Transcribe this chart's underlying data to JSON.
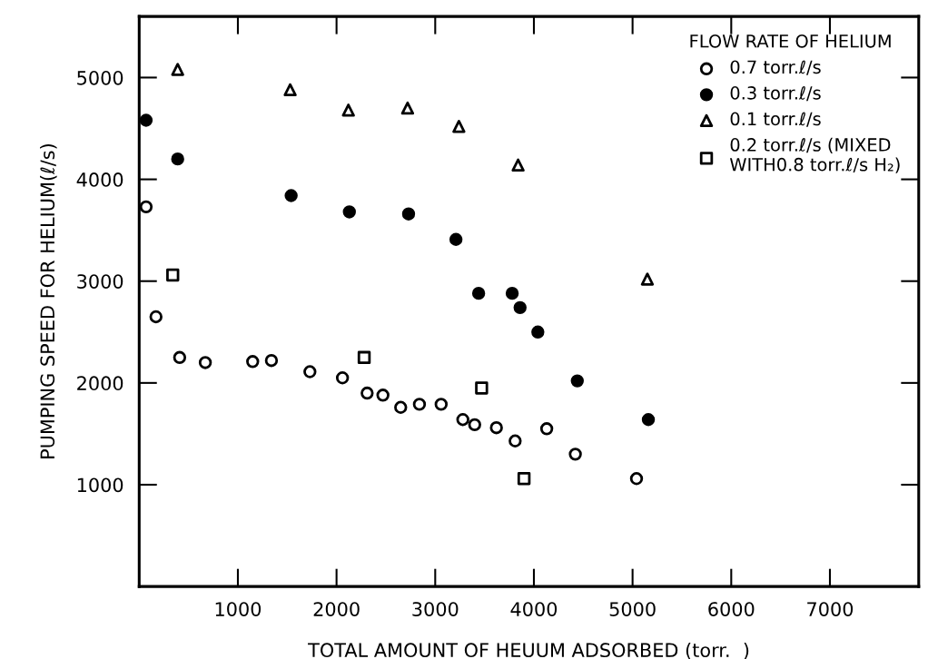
{
  "chart_data": {
    "type": "scatter",
    "xlabel": "TOTAL AMOUNT OF HEUUM ADSORBED (torr.  )",
    "ylabel": "PUMPING SPEED FOR HELIUM(ℓ/s)",
    "legend_title": "FLOW RATE OF HELIUM",
    "legend": "top right",
    "grid": false,
    "xlim": [
      0,
      7900
    ],
    "xticks": [
      1000,
      2000,
      3000,
      4000,
      5000,
      6000,
      7000
    ],
    "ylim": [
      0,
      5600
    ],
    "yticks": [
      1000,
      2000,
      3000,
      4000,
      5000
    ],
    "series": [
      {
        "name": "0.7 torr.ℓ/s",
        "color": "#000000",
        "marker": "circle",
        "x": [
          70,
          170,
          410,
          670,
          1150,
          1340,
          1730,
          2060,
          2310,
          2470,
          2650,
          2840,
          3060,
          3280,
          3400,
          3620,
          3810,
          4130,
          4420,
          5040
        ],
        "values": [
          3730,
          2650,
          2250,
          2200,
          2210,
          2220,
          2110,
          2050,
          1900,
          1880,
          1760,
          1790,
          1790,
          1640,
          1590,
          1560,
          1430,
          1550,
          1300,
          1060
        ]
      },
      {
        "name": "0.3 torr.ℓ/s",
        "color": "#000000",
        "marker": "circle",
        "x": [
          70,
          390,
          1540,
          2130,
          2730,
          3210,
          3440,
          3780,
          3860,
          4040,
          4440,
          5160
        ],
        "values": [
          4580,
          4200,
          3840,
          3680,
          3660,
          3410,
          2880,
          2880,
          2740,
          2500,
          2020,
          1640
        ]
      },
      {
        "name": "0.1 torr.ℓ/s",
        "color": "#000000",
        "marker": "triangle",
        "x": [
          390,
          1530,
          2120,
          2720,
          3240,
          3840,
          5150
        ],
        "values": [
          5080,
          4880,
          4680,
          4700,
          4520,
          4140,
          3020
        ]
      },
      {
        "name": "0.2 torr.ℓ/s (MIXED\nWITH0.8 torr.ℓ/s H₂)",
        "color": "#000000",
        "marker": "square",
        "x": [
          340,
          2280,
          3470,
          3900
        ],
        "values": [
          3060,
          2250,
          1950,
          1060
        ]
      }
    ]
  }
}
